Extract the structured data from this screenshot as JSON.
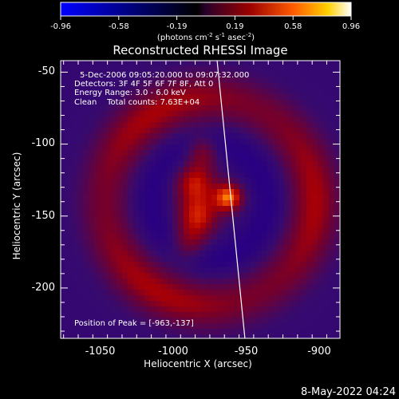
{
  "chart_data": {
    "type": "heatmap",
    "title": "Reconstructed RHESSI Image",
    "xlabel": "Heliocentric X (arcsec)",
    "ylabel": "Heliocentric Y (arcsec)",
    "xlim": [
      -1077,
      -886
    ],
    "ylim": [
      -235,
      -42
    ],
    "xticks": [
      -1050,
      -1000,
      -950,
      -900
    ],
    "yticks": [
      -50,
      -100,
      -150,
      -200
    ],
    "colorbar": {
      "range": [
        -0.96,
        0.96
      ],
      "ticks": [
        "-0.96",
        "-0.58",
        "-0.19",
        "0.19",
        "0.58",
        "0.96"
      ],
      "units": "(photons cm",
      "units_sup1": "-2",
      "units_mid": " s",
      "units_sup2": "-1",
      "units_mid2": " asec",
      "units_sup3": "-2",
      "units_end": ")",
      "colormap": [
        "#0000ff",
        "#000000",
        "#ff0000",
        "#ffff00",
        "#ffffff"
      ]
    },
    "annotations": [
      "5-Dec-2006 09:05:20.000 to 09:07:32.000",
      "Detectors: 3F 4F 5F 6F 7F 8F, Att 0",
      "Energy Range: 3.0 - 6.0 keV",
      "Clean    Total counts: 7.63E+04",
      "Position of Peak = [-963,-137]"
    ],
    "peak": [
      -963,
      -137
    ],
    "limb_line": [
      [
        -970,
        -42
      ],
      [
        -951,
        -235
      ]
    ],
    "structures": [
      {
        "kind": "ring",
        "center": [
          -975,
          -140
        ],
        "radius": 72,
        "width": 17,
        "amplitude": 0.62
      },
      {
        "kind": "blob",
        "center": [
          -962,
          -137
        ],
        "sigma": 7,
        "amplitude": 0.96
      },
      {
        "kind": "blob",
        "center": [
          -985,
          -127
        ],
        "sigma": 10,
        "amplitude": 0.7
      },
      {
        "kind": "blob",
        "center": [
          -983,
          -150
        ],
        "sigma": 10,
        "amplitude": 0.72
      },
      {
        "kind": "blob",
        "center": [
          -980,
          -105
        ],
        "sigma": 8,
        "amplitude": 0.55
      },
      {
        "kind": "blob",
        "center": [
          -990,
          -170
        ],
        "sigma": 9,
        "amplitude": 0.5
      }
    ]
  },
  "footer": {
    "date": "8-May-2022 04:24"
  }
}
